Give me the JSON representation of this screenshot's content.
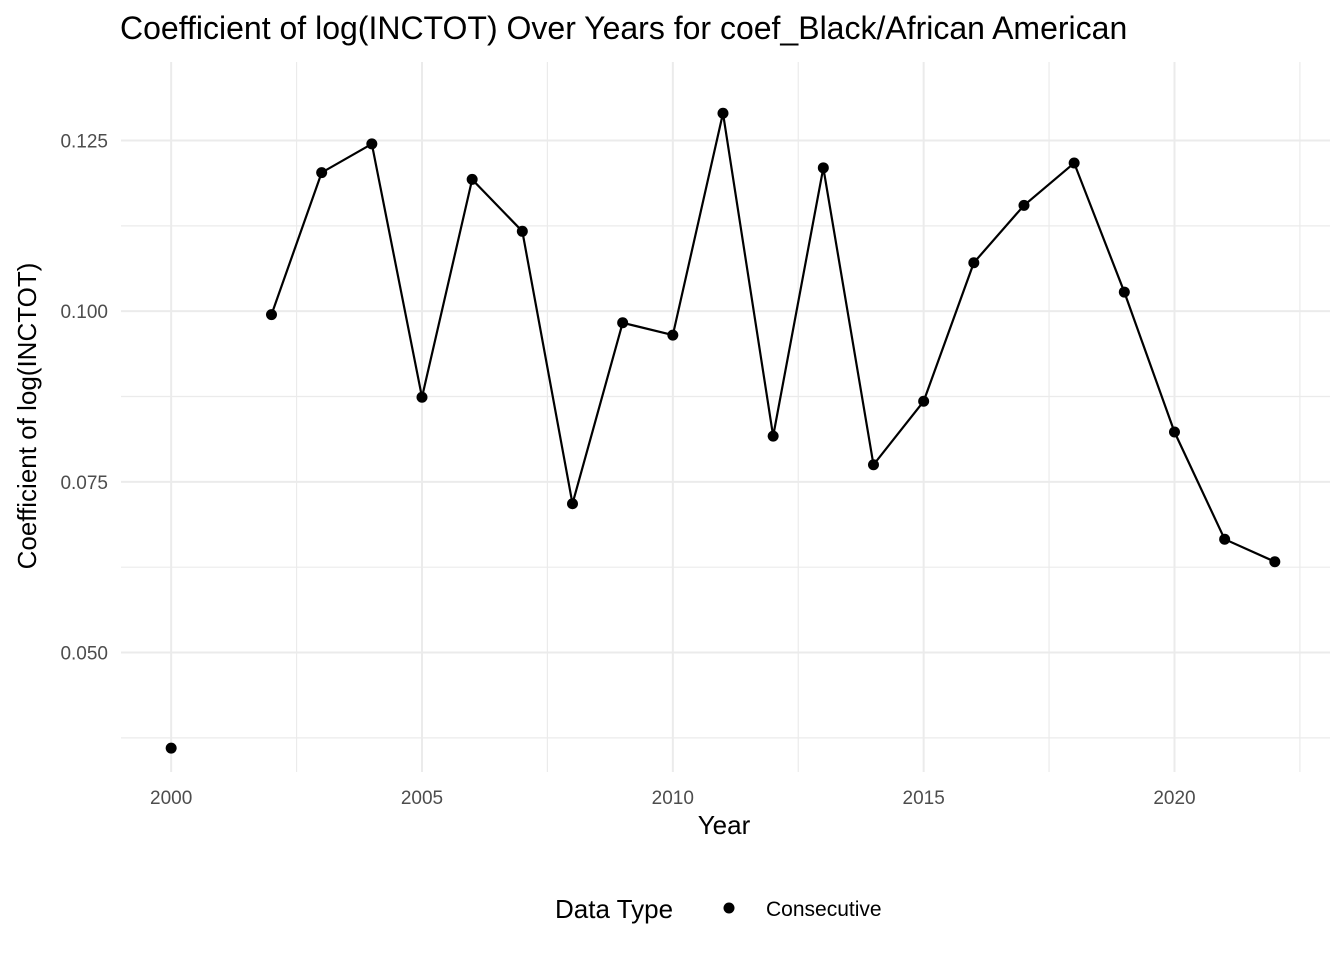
{
  "chart_data": {
    "type": "line",
    "title": "Coefficient of log(INCTOT) Over Years for coef_Black/African American",
    "xlabel": "Year",
    "ylabel": "Coefficient of log(INCTOT)",
    "xlim": [
      1999.0,
      2023.1
    ],
    "ylim": [
      0.0325,
      0.1365
    ],
    "x_ticks": [
      2000,
      2005,
      2010,
      2015,
      2020
    ],
    "x_tick_labels": [
      "2000",
      "2005",
      "2010",
      "2015",
      "2020"
    ],
    "x_minor_ticks": [
      2002.5,
      2007.5,
      2012.5,
      2017.5,
      2022.5
    ],
    "y_ticks": [
      0.05,
      0.075,
      0.1,
      0.125
    ],
    "y_tick_labels": [
      "0.050",
      "0.075",
      "0.100",
      "0.125"
    ],
    "y_minor_ticks": [
      0.0375,
      0.0625,
      0.0875,
      0.1125
    ],
    "grid": true,
    "legend": {
      "title": "Data Type",
      "position": "bottom",
      "entries": [
        {
          "label": "Consecutive",
          "marker": "point",
          "color": "#000000"
        }
      ]
    },
    "series": [
      {
        "name": "Consecutive",
        "color": "#000000",
        "points": [
          [
            2000,
            0.036
          ],
          [
            2002,
            0.0995
          ],
          [
            2003,
            0.1203
          ],
          [
            2004,
            0.1245
          ],
          [
            2005,
            0.0874
          ],
          [
            2006,
            0.1193
          ],
          [
            2007,
            0.1117
          ],
          [
            2008,
            0.0718
          ],
          [
            2009,
            0.0983
          ],
          [
            2010,
            0.0965
          ],
          [
            2011,
            0.129
          ],
          [
            2012,
            0.0817
          ],
          [
            2013,
            0.121
          ],
          [
            2014,
            0.0775
          ],
          [
            2015,
            0.0868
          ],
          [
            2016,
            0.1071
          ],
          [
            2017,
            0.1155
          ],
          [
            2018,
            0.1217
          ],
          [
            2019,
            0.1028
          ],
          [
            2020,
            0.0823
          ],
          [
            2021,
            0.0666
          ],
          [
            2022,
            0.0633
          ]
        ],
        "line_segments": [
          [
            2002,
            2022
          ]
        ]
      }
    ]
  }
}
